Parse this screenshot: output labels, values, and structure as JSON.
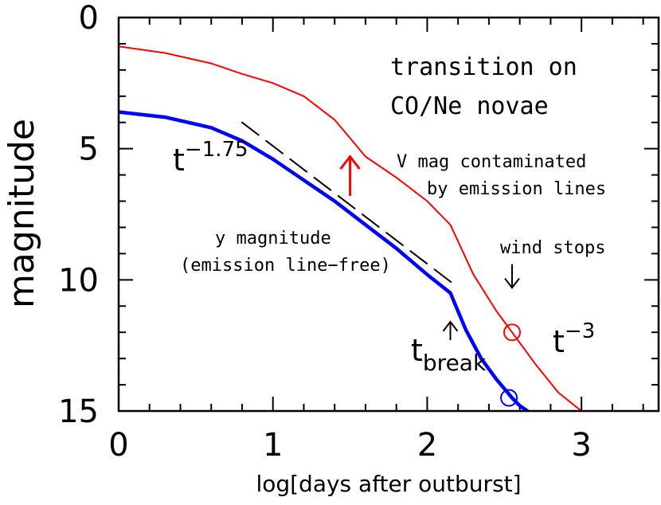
{
  "chart_data": {
    "type": "line",
    "title": "",
    "xlabel": "log[days after outburst]",
    "ylabel": "magnitude",
    "xlim": [
      0,
      3.5
    ],
    "ylim": [
      15,
      0
    ],
    "y_inverted": true,
    "x_ticks": [
      "0",
      "1",
      "2",
      "3"
    ],
    "y_ticks": [
      "0",
      "5",
      "10",
      "15"
    ],
    "grid": false,
    "series": [
      {
        "name": "V mag contaminated by emission lines",
        "color": "#ff0000",
        "x": [
          0,
          0.3,
          0.6,
          0.8,
          1.0,
          1.2,
          1.4,
          1.5,
          1.6,
          1.8,
          2.0,
          2.15,
          2.3,
          2.45,
          2.55,
          2.7,
          2.85,
          3.0
        ],
        "y": [
          1.1,
          1.35,
          1.75,
          2.15,
          2.5,
          3.0,
          3.9,
          4.6,
          5.3,
          6.1,
          7.0,
          7.9,
          9.8,
          11.2,
          12.0,
          13.2,
          14.3,
          15.0
        ]
      },
      {
        "name": "y magnitude (emission line-free)",
        "color": "#0000ff",
        "x": [
          0,
          0.3,
          0.6,
          0.8,
          1.0,
          1.2,
          1.4,
          1.6,
          1.8,
          2.0,
          2.15,
          2.25,
          2.35,
          2.45,
          2.55,
          2.6,
          2.65
        ],
        "y": [
          3.6,
          3.8,
          4.2,
          4.7,
          5.4,
          6.2,
          7.0,
          7.9,
          8.8,
          9.8,
          10.5,
          11.9,
          13.0,
          13.8,
          14.5,
          14.8,
          15.0
        ]
      },
      {
        "name": "t^-1.75 power law",
        "color": "#000000",
        "dashed": true,
        "x": [
          0.8,
          2.18
        ],
        "y": [
          4.0,
          10.2
        ]
      }
    ],
    "markers": [
      {
        "shape": "circle",
        "color": "#ff0000",
        "x": 2.55,
        "y": 12.0
      },
      {
        "shape": "circle",
        "color": "#0000ff",
        "x": 2.53,
        "y": 14.5
      }
    ],
    "arrows": [
      {
        "color": "#ff0000",
        "x": 1.5,
        "y_from": 6.8,
        "y_to": 5.3
      },
      {
        "color": "#000000",
        "x": 2.55,
        "y_from": 9.4,
        "y_to": 10.3
      },
      {
        "color": "#000000",
        "x": 2.15,
        "y_from": 12.3,
        "y_to": 11.6
      }
    ],
    "annotations": {
      "transition_line1": "transition on",
      "transition_line2": "CO/Ne novae",
      "vmag_line1": "V mag contaminated",
      "vmag_line2": "by emission lines",
      "ymag_line1": "y magnitude",
      "ymag_line2": "(emission line−free)",
      "wind_stops": "wind stops",
      "t_base": "t",
      "exp_175": "−1.75",
      "exp_3": "−3",
      "break_sub": "break"
    }
  }
}
